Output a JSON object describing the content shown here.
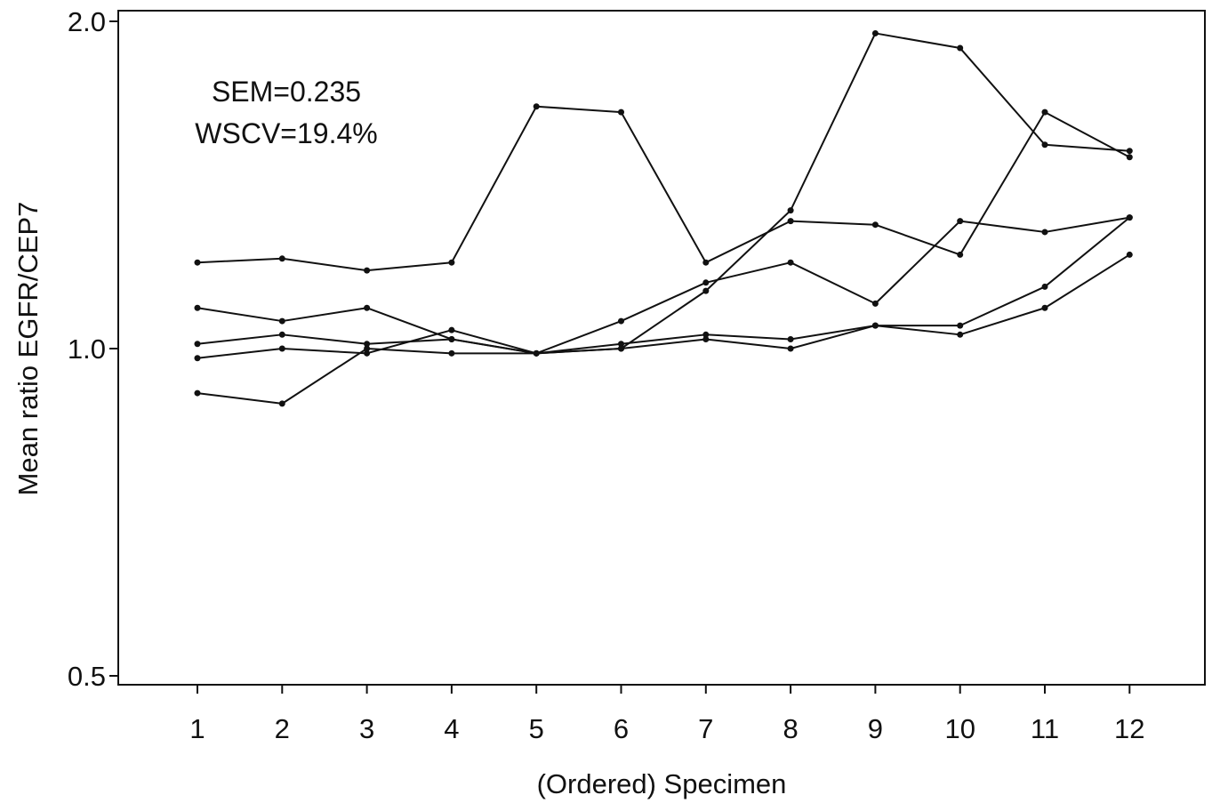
{
  "chart_data": {
    "type": "line",
    "title": "",
    "xlabel": "(Ordered) Specimen",
    "ylabel": "Mean ratio EGFR/CEP7",
    "x": [
      1,
      2,
      3,
      4,
      5,
      6,
      7,
      8,
      9,
      10,
      11,
      12
    ],
    "x_tick_labels": [
      "1",
      "2",
      "3",
      "4",
      "5",
      "6",
      "7",
      "8",
      "9",
      "10",
      "11",
      "12"
    ],
    "y_scale": "log",
    "ylim": [
      0.5,
      2.0
    ],
    "y_ticks": [
      0.5,
      1.0,
      2.0
    ],
    "y_tick_labels": [
      "0.5",
      "1.0",
      "2.0"
    ],
    "grid": false,
    "annotations": [
      "SEM=0.235",
      "WSCV=19.4%"
    ],
    "series": [
      {
        "values": [
          1.2,
          1.21,
          1.18,
          1.2,
          1.67,
          1.65,
          1.2,
          1.31,
          1.3,
          1.22,
          1.65,
          1.5
        ]
      },
      {
        "values": [
          1.09,
          1.06,
          1.09,
          1.02,
          0.99,
          1.06,
          1.15,
          1.2,
          1.1,
          1.31,
          1.28,
          1.32
        ]
      },
      {
        "values": [
          1.01,
          1.03,
          1.01,
          1.02,
          0.99,
          1.01,
          1.03,
          1.02,
          1.05,
          1.05,
          1.14,
          1.32
        ]
      },
      {
        "values": [
          0.98,
          1.0,
          0.99,
          1.04,
          0.99,
          1.0,
          1.02,
          1.0,
          1.05,
          1.03,
          1.09,
          1.22
        ]
      },
      {
        "values": [
          0.91,
          0.89,
          1.0,
          0.99,
          0.99,
          1.0,
          1.13,
          1.34,
          1.95,
          1.89,
          1.54,
          1.52
        ]
      }
    ]
  }
}
